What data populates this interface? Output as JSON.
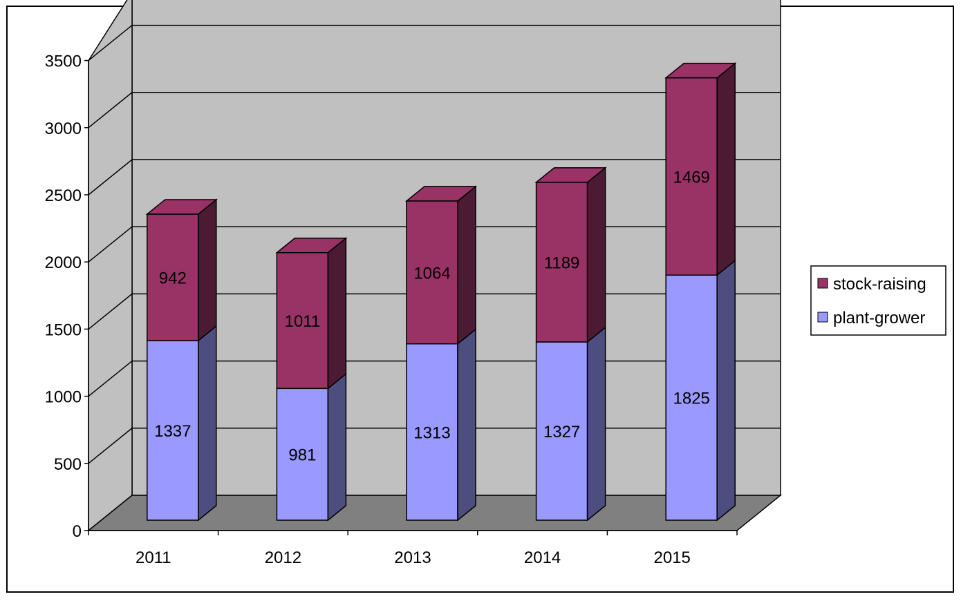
{
  "chart_data": {
    "type": "bar",
    "stacked": true,
    "three_d": true,
    "categories": [
      "2011",
      "2012",
      "2013",
      "2014",
      "2015"
    ],
    "series": [
      {
        "name": "plant-grower",
        "values": [
          1337,
          981,
          1313,
          1327,
          1825
        ],
        "color": "#9999ff"
      },
      {
        "name": "stock-raising",
        "values": [
          942,
          1011,
          1064,
          1189,
          1469
        ],
        "color": "#993366"
      }
    ],
    "yticks": [
      "0",
      "500",
      "1000",
      "1500",
      "2000",
      "2500",
      "3000",
      "3500"
    ],
    "ylim": [
      0,
      3500
    ],
    "grid": true,
    "legend_position": "right",
    "colors": {
      "back_wall": "#c0c0c0",
      "floor": "#808080",
      "plant_side": "#4d4d80",
      "stock_side": "#4d1a33"
    }
  }
}
